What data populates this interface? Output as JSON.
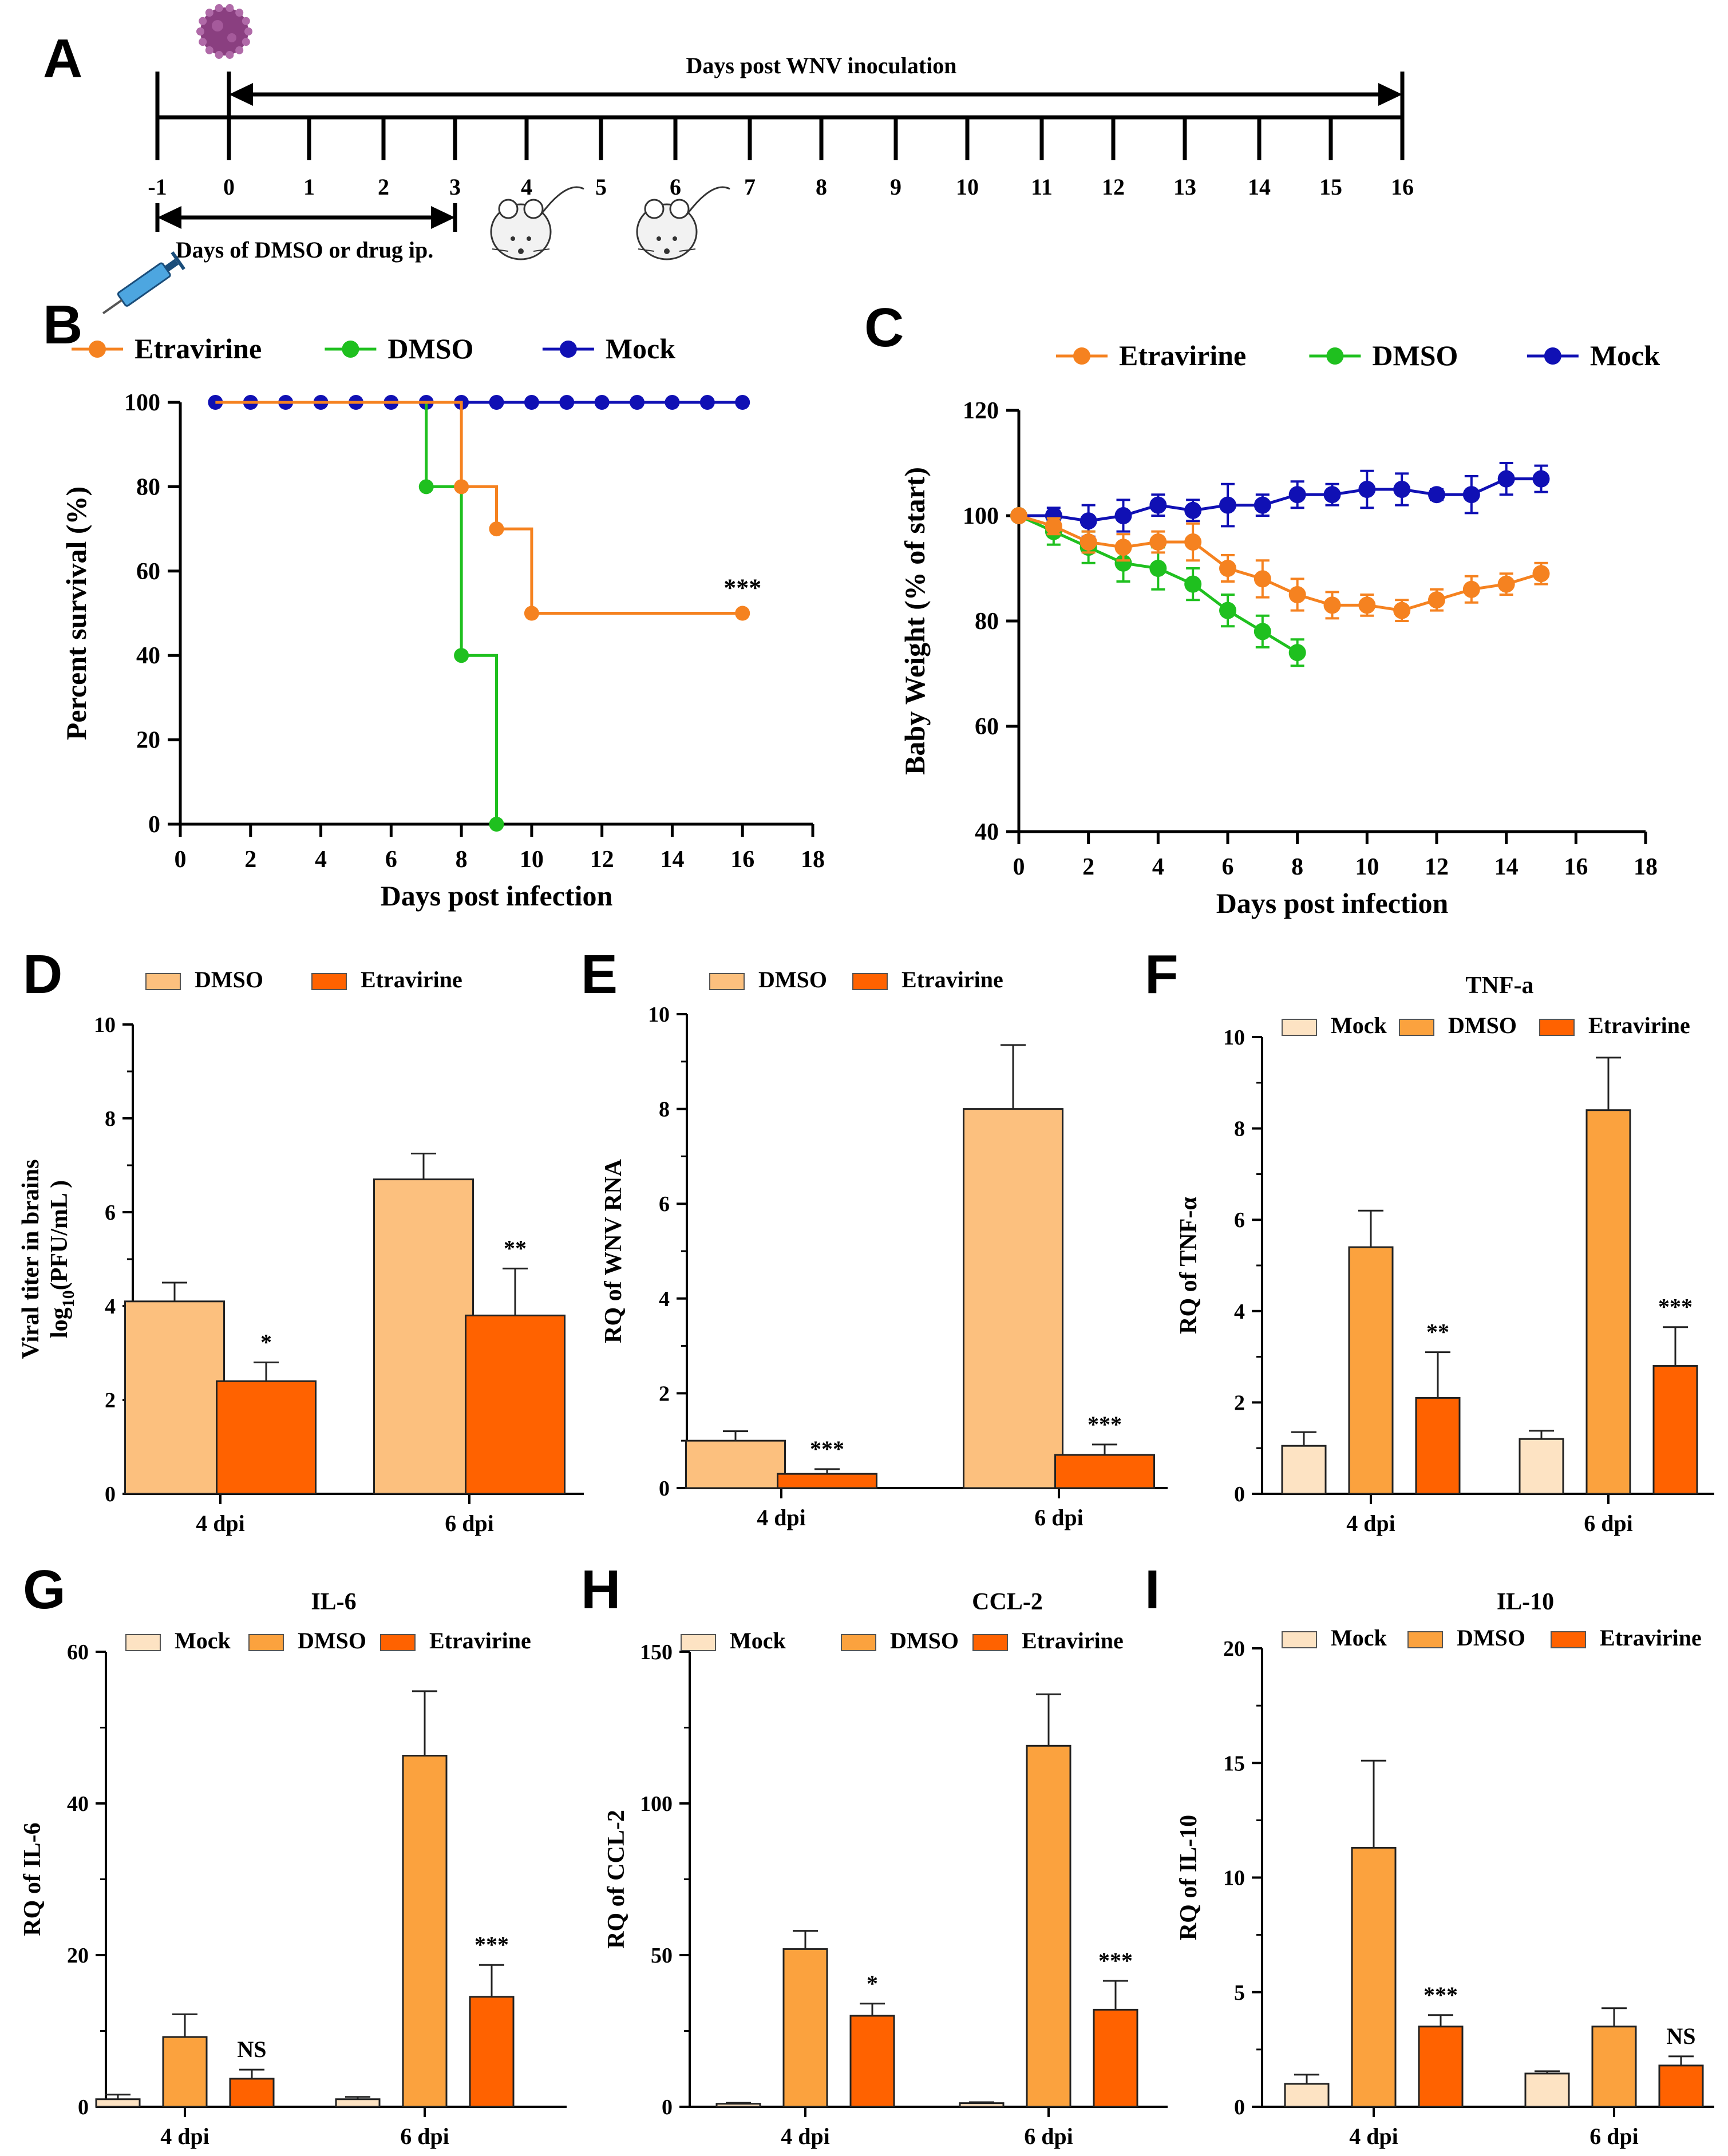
{
  "colors": {
    "etravirine_line": "#f58220",
    "dmso_line": "#1fc01f",
    "mock_line": "#1010b4",
    "bar_mock": "#fde3c3",
    "bar_dmso_light": "#fcc07e",
    "bar_dmso": "#fba23e",
    "bar_etravirine": "#ff6200"
  },
  "panel_a": {
    "label": "A",
    "top_title": "Days post WNV inoculation",
    "bottom_title": "Days of DMSO or drug ip.",
    "days": [
      "-1",
      "0",
      "1",
      "2",
      "3",
      "4",
      "5",
      "6",
      "7",
      "8",
      "9",
      "10",
      "11",
      "12",
      "13",
      "14",
      "15",
      "16"
    ],
    "icons": [
      "virus-icon",
      "syringe-icon",
      "mouse-icon",
      "mouse-icon"
    ]
  },
  "chart_data": [
    {
      "id": "B",
      "type": "line",
      "step": true,
      "title": "",
      "xlabel": "Days post infection",
      "ylabel": "Percent survival (%)",
      "xlim": [
        0,
        18
      ],
      "ylim": [
        0,
        100
      ],
      "xticks": [
        "0",
        "2",
        "4",
        "6",
        "8",
        "10",
        "12",
        "14",
        "16",
        "18"
      ],
      "yticks": [
        "0",
        "20",
        "40",
        "60",
        "80",
        "100"
      ],
      "legend": [
        "Etravirine",
        "DMSO",
        "Mock"
      ],
      "annotations": [
        {
          "text": "***",
          "x": 16,
          "y": 50
        }
      ],
      "series": [
        {
          "name": "Mock",
          "x": [
            1,
            2,
            3,
            4,
            5,
            6,
            7,
            8,
            9,
            10,
            11,
            12,
            13,
            14,
            15,
            16
          ],
          "values": [
            100,
            100,
            100,
            100,
            100,
            100,
            100,
            100,
            100,
            100,
            100,
            100,
            100,
            100,
            100,
            100
          ]
        },
        {
          "name": "DMSO",
          "x": [
            7,
            8,
            9
          ],
          "values": [
            80,
            40,
            0
          ]
        },
        {
          "name": "Etravirine",
          "x": [
            8,
            9,
            10,
            16
          ],
          "values": [
            80,
            70,
            50,
            50
          ]
        }
      ]
    },
    {
      "id": "C",
      "type": "line",
      "title": "",
      "xlabel": "Days post infection",
      "ylabel": "Baby Weight (% of start)",
      "xlim": [
        0,
        18
      ],
      "ylim": [
        40,
        120
      ],
      "xticks": [
        "0",
        "2",
        "4",
        "6",
        "8",
        "10",
        "12",
        "14",
        "16",
        "18"
      ],
      "yticks": [
        "40",
        "60",
        "80",
        "100",
        "120"
      ],
      "legend": [
        "Etravirine",
        "DMSO",
        "Mock"
      ],
      "series": [
        {
          "name": "Mock",
          "x": [
            0,
            1,
            2,
            3,
            4,
            5,
            6,
            7,
            8,
            9,
            10,
            11,
            12,
            13,
            14,
            15
          ],
          "values": [
            100,
            100,
            99,
            100,
            102,
            101,
            102,
            102,
            104,
            104,
            105,
            105,
            104,
            104,
            107,
            107
          ],
          "err": [
            0,
            1.5,
            3,
            3,
            2,
            2,
            4,
            2,
            2.5,
            2,
            3.5,
            3,
            1,
            3.5,
            3,
            2.5
          ]
        },
        {
          "name": "DMSO",
          "x": [
            0,
            1,
            2,
            3,
            4,
            5,
            6,
            7,
            8
          ],
          "values": [
            100,
            97,
            94,
            91,
            90,
            87,
            82,
            78,
            74
          ],
          "err": [
            0,
            2.5,
            3,
            3.5,
            4,
            3,
            3,
            3,
            2.5
          ]
        },
        {
          "name": "Etravirine",
          "x": [
            0,
            1,
            2,
            3,
            4,
            5,
            6,
            7,
            8,
            9,
            10,
            11,
            12,
            13,
            14,
            15
          ],
          "values": [
            100,
            98,
            95,
            94,
            95,
            95,
            90,
            88,
            85,
            83,
            83,
            82,
            84,
            86,
            87,
            89
          ],
          "err": [
            0,
            1.5,
            2,
            2.5,
            2,
            3.5,
            2.5,
            3.5,
            3,
            2.5,
            2,
            2,
            2,
            2.5,
            2,
            2
          ]
        }
      ]
    },
    {
      "id": "D",
      "type": "bar",
      "title": "",
      "xlabel": "",
      "ylabel": "Viral titer in brains",
      "ylabel2_pre": "log",
      "ylabel2_sub": "10",
      "ylabel2_post": "(PFU/mL )",
      "ylim": [
        0,
        10
      ],
      "yticks": [
        "0",
        "2",
        "4",
        "6",
        "8",
        "10"
      ],
      "categories": [
        "4 dpi",
        "6 dpi"
      ],
      "legend": [
        "DMSO",
        "Etravirine"
      ],
      "series": [
        {
          "name": "DMSO",
          "values": [
            4.1,
            6.7
          ],
          "err": [
            0.4,
            0.55
          ],
          "sig": [
            "",
            ""
          ]
        },
        {
          "name": "Etravirine",
          "values": [
            2.4,
            3.8
          ],
          "err": [
            0.4,
            1.0
          ],
          "sig": [
            "*",
            "**"
          ]
        }
      ]
    },
    {
      "id": "E",
      "type": "bar",
      "title": "",
      "xlabel": "",
      "ylabel": "RQ of WNV RNA",
      "ylim": [
        0,
        10
      ],
      "yticks": [
        "0",
        "2",
        "4",
        "6",
        "8",
        "10"
      ],
      "categories": [
        "4 dpi",
        "6 dpi"
      ],
      "legend": [
        "DMSO",
        "Etravirine"
      ],
      "series": [
        {
          "name": "DMSO",
          "values": [
            1.0,
            8.0
          ],
          "err": [
            0.2,
            1.35
          ],
          "sig": [
            "",
            ""
          ]
        },
        {
          "name": "Etravirine",
          "values": [
            0.3,
            0.7
          ],
          "err": [
            0.1,
            0.22
          ],
          "sig": [
            "***",
            "***"
          ]
        }
      ]
    },
    {
      "id": "F",
      "type": "bar",
      "title": "TNF-a",
      "xlabel": "",
      "ylabel": "RQ of TNF-α",
      "ylim": [
        0,
        10
      ],
      "yticks": [
        "0",
        "2",
        "4",
        "6",
        "8",
        "10"
      ],
      "categories": [
        "4 dpi",
        "6 dpi"
      ],
      "legend": [
        "Mock",
        "DMSO",
        "Etravirine"
      ],
      "series": [
        {
          "name": "Mock",
          "values": [
            1.05,
            1.2
          ],
          "err": [
            0.3,
            0.18
          ],
          "sig": [
            "",
            ""
          ]
        },
        {
          "name": "DMSO",
          "values": [
            5.4,
            8.4
          ],
          "err": [
            0.8,
            1.15
          ],
          "sig": [
            "",
            ""
          ]
        },
        {
          "name": "Etravirine",
          "values": [
            2.1,
            2.8
          ],
          "err": [
            1.0,
            0.85
          ],
          "sig": [
            "**",
            "***"
          ]
        }
      ]
    },
    {
      "id": "G",
      "type": "bar",
      "title": "IL-6",
      "xlabel": "",
      "ylabel": "RQ of IL-6",
      "ylim": [
        0,
        60
      ],
      "yticks": [
        "0",
        "20",
        "40",
        "60"
      ],
      "categories": [
        "4 dpi",
        "6 dpi"
      ],
      "legend": [
        "Mock",
        "DMSO",
        "Etravirine"
      ],
      "series": [
        {
          "name": "Mock",
          "values": [
            1.0,
            1.0
          ],
          "err": [
            0.6,
            0.3
          ],
          "sig": [
            "",
            ""
          ]
        },
        {
          "name": "DMSO",
          "values": [
            9.2,
            46.3
          ],
          "err": [
            3.0,
            8.5
          ],
          "sig": [
            "",
            ""
          ]
        },
        {
          "name": "Etravirine",
          "values": [
            3.7,
            14.5
          ],
          "err": [
            1.2,
            4.2
          ],
          "sig": [
            "NS",
            "***"
          ]
        }
      ]
    },
    {
      "id": "H",
      "type": "bar",
      "title": "CCL-2",
      "xlabel": "",
      "ylabel": "RQ of CCL-2",
      "ylim": [
        0,
        150
      ],
      "yticks": [
        "0",
        "50",
        "100",
        "150"
      ],
      "categories": [
        "4 dpi",
        "6 dpi"
      ],
      "legend": [
        "Mock",
        "DMSO",
        "Etravirine"
      ],
      "series": [
        {
          "name": "Mock",
          "values": [
            1.0,
            1.2
          ],
          "err": [
            0.3,
            0.3
          ],
          "sig": [
            "",
            ""
          ]
        },
        {
          "name": "DMSO",
          "values": [
            52,
            119
          ],
          "err": [
            6,
            17
          ],
          "sig": [
            "",
            ""
          ]
        },
        {
          "name": "Etravirine",
          "values": [
            30,
            32
          ],
          "err": [
            4,
            9.5
          ],
          "sig": [
            "*",
            "***"
          ]
        }
      ]
    },
    {
      "id": "I",
      "type": "bar",
      "title": "IL-10",
      "xlabel": "",
      "ylabel": "RQ of IL-10",
      "ylim": [
        0,
        20
      ],
      "yticks": [
        "0",
        "5",
        "10",
        "15",
        "20"
      ],
      "categories": [
        "4 dpi",
        "6 dpi"
      ],
      "legend": [
        "Mock",
        "DMSO",
        "Etravirine"
      ],
      "series": [
        {
          "name": "Mock",
          "values": [
            1.0,
            1.45
          ],
          "err": [
            0.4,
            0.1
          ],
          "sig": [
            "",
            ""
          ]
        },
        {
          "name": "DMSO",
          "values": [
            11.3,
            3.5
          ],
          "err": [
            3.8,
            0.8
          ],
          "sig": [
            "",
            ""
          ]
        },
        {
          "name": "Etravirine",
          "values": [
            3.5,
            1.8
          ],
          "err": [
            0.5,
            0.4
          ],
          "sig": [
            "***",
            "NS"
          ]
        }
      ]
    }
  ]
}
